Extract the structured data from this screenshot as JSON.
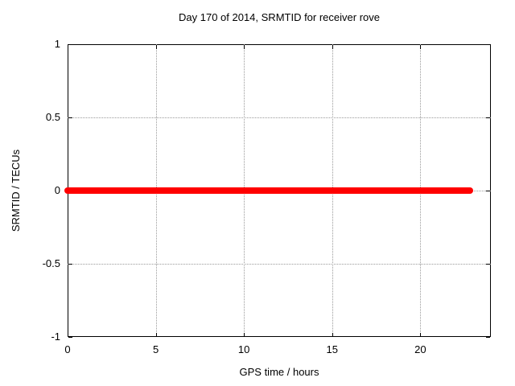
{
  "title": "Day 170 of 2014, SRMTID for receiver rove",
  "colors": {
    "background": "#ffffff",
    "axis": "#000000",
    "grid": "#9a9a9a",
    "text": "#000000",
    "series_red": "#ff0000"
  },
  "chart_data": {
    "type": "line",
    "title": "Day 170 of 2014, SRMTID for receiver rove",
    "xlabel": "GPS time / hours",
    "ylabel": "SRMTID / TECUs",
    "xlim": [
      0,
      24
    ],
    "ylim": [
      -1,
      1
    ],
    "xticks": [
      0,
      5,
      10,
      15,
      20
    ],
    "xtick_labels": [
      "0",
      "5",
      "10",
      "15",
      "20"
    ],
    "yticks": [
      -1,
      -0.5,
      0,
      0.5,
      1
    ],
    "ytick_labels": [
      "-1",
      "-0.5",
      "0",
      "0.5",
      "1"
    ],
    "grid": true,
    "grid_style": "dotted",
    "legend_position": "none",
    "series": [
      {
        "name": "SRMTID",
        "color": "#ff0000",
        "line_width": 8,
        "x": [
          0,
          22.8
        ],
        "y": [
          0,
          0
        ]
      }
    ]
  }
}
